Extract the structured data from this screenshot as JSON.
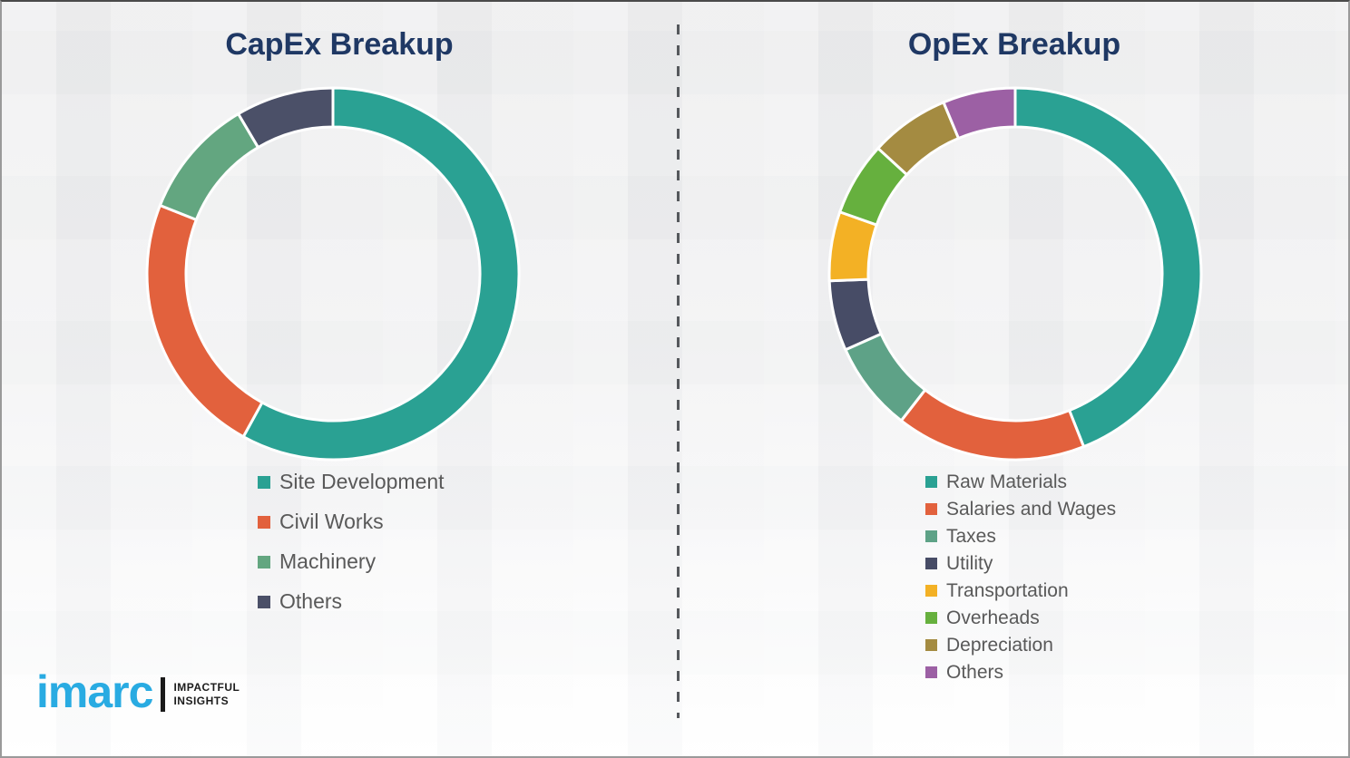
{
  "chart_data": [
    {
      "type": "pie",
      "variant": "donut",
      "title": "CapEx Breakup",
      "categories": [
        "Site Development",
        "Civil Works",
        "Machinery",
        "Others"
      ],
      "values": [
        58,
        23,
        10.5,
        8.5
      ],
      "colors": [
        "#2aa193",
        "#e2613d",
        "#63a680",
        "#4b5068"
      ],
      "units": "percent (estimated from arc angles, no labels shown)",
      "start_angle_deg": 0,
      "direction": "clockwise",
      "legend_position": "below-left",
      "segment_gap_color": "#ffffff"
    },
    {
      "type": "pie",
      "variant": "donut",
      "title": "OpEx Breakup",
      "categories": [
        "Raw Materials",
        "Salaries and Wages",
        "Taxes",
        "Utility",
        "Transportation",
        "Overheads",
        "Depreciation",
        "Others"
      ],
      "values": [
        44,
        16.5,
        7.8,
        6.1,
        6.0,
        6.4,
        6.9,
        6.3
      ],
      "colors": [
        "#2aa193",
        "#e2613d",
        "#5ea287",
        "#474c66",
        "#f3b125",
        "#66b03e",
        "#a48b41",
        "#9c60a4"
      ],
      "units": "percent (estimated from arc angles, no labels shown)",
      "start_angle_deg": 0,
      "direction": "clockwise",
      "legend_position": "below-left",
      "segment_gap_color": "#ffffff"
    }
  ],
  "styles": {
    "title_color": "#1f3864",
    "legend_text_color": "#595959",
    "divider_color": "#55585c",
    "background_color": "#f0f0f1"
  },
  "logo": {
    "brand": "imarc",
    "tagline_line1": "IMPACTFUL",
    "tagline_line2": "INSIGHTS",
    "brand_color": "#29abe2"
  }
}
